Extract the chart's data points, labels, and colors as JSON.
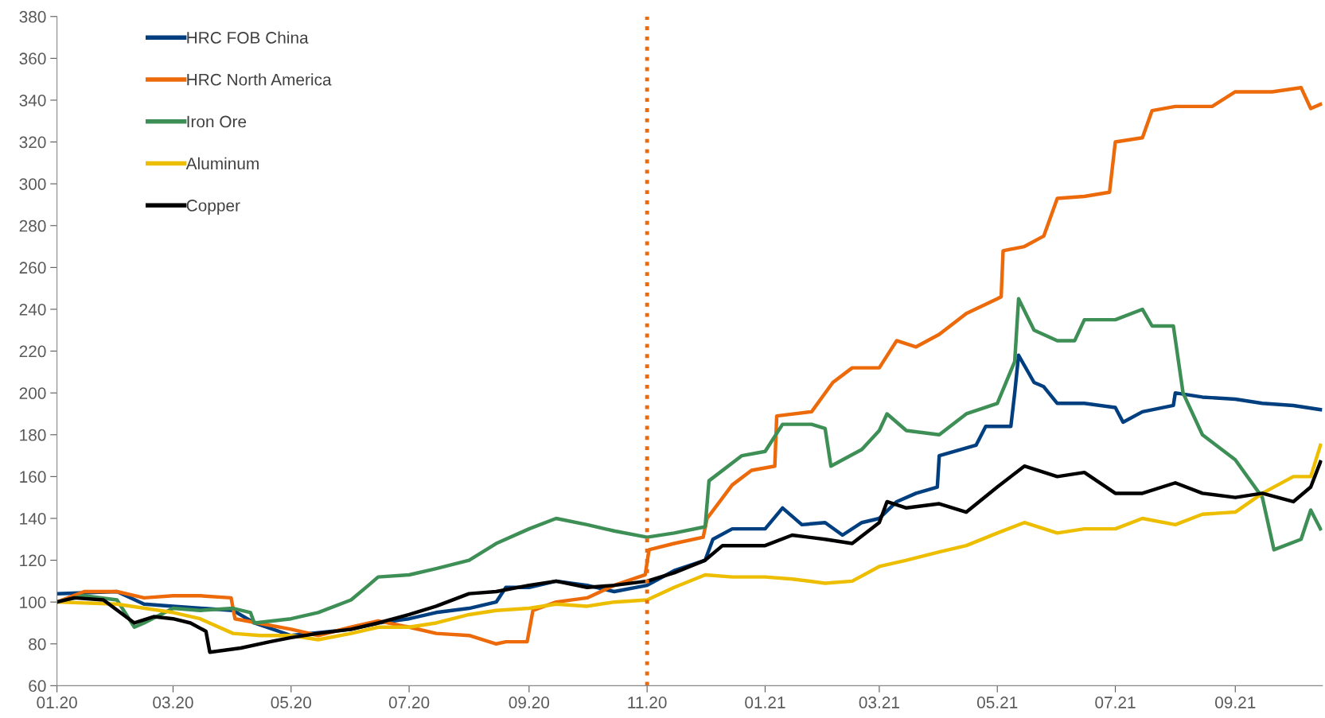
{
  "chart_data": {
    "type": "line",
    "xlim": [
      "2020-01-01",
      "2021-10-16"
    ],
    "xticks": [
      {
        "value": "2020-01-01",
        "label": "01.20"
      },
      {
        "value": "2020-03-01",
        "label": "03.20"
      },
      {
        "value": "2020-05-01",
        "label": "05.20"
      },
      {
        "value": "2020-07-01",
        "label": "07.20"
      },
      {
        "value": "2020-09-01",
        "label": "09.20"
      },
      {
        "value": "2020-11-01",
        "label": "11.20"
      },
      {
        "value": "2021-01-01",
        "label": "01.21"
      },
      {
        "value": "2021-03-01",
        "label": "03.21"
      },
      {
        "value": "2021-05-01",
        "label": "05.21"
      },
      {
        "value": "2021-07-01",
        "label": "07.21"
      },
      {
        "value": "2021-09-01",
        "label": "09.21"
      }
    ],
    "ylim": [
      60,
      380
    ],
    "yticks": [
      60,
      80,
      100,
      120,
      140,
      160,
      180,
      200,
      220,
      240,
      260,
      280,
      300,
      320,
      340,
      360,
      380
    ],
    "grid": false,
    "legend": "top left",
    "marker": "none",
    "line_style": "solid",
    "ref_lines": [
      {
        "axis": "x",
        "value": "2020-11-01",
        "label": null,
        "color": "#ed6a0b",
        "line_style": "dotted"
      }
    ],
    "series": [
      {
        "name": "HRC FOB China",
        "color": "#003f7f",
        "x": [
          "2020-01-01",
          "2020-02-01",
          "2020-02-15",
          "2020-03-01",
          "2020-04-01",
          "2020-04-12",
          "2020-05-01",
          "2020-06-01",
          "2020-06-15",
          "2020-07-01",
          "2020-07-15",
          "2020-08-01",
          "2020-08-15",
          "2020-08-20",
          "2020-09-01",
          "2020-09-15",
          "2020-10-01",
          "2020-10-15",
          "2020-11-01",
          "2020-11-15",
          "2020-12-01",
          "2020-12-05",
          "2020-12-15",
          "2021-01-01",
          "2021-01-10",
          "2021-01-20",
          "2021-02-01",
          "2021-02-10",
          "2021-02-20",
          "2021-03-01",
          "2021-03-10",
          "2021-03-20",
          "2021-03-31",
          "2021-04-01",
          "2021-04-20",
          "2021-04-25",
          "2021-05-08",
          "2021-05-10",
          "2021-05-12",
          "2021-05-20",
          "2021-05-25",
          "2021-06-01",
          "2021-06-15",
          "2021-07-01",
          "2021-07-05",
          "2021-07-15",
          "2021-07-31",
          "2021-08-01",
          "2021-08-15",
          "2021-09-01",
          "2021-09-15",
          "2021-10-01",
          "2021-10-15"
        ],
        "values": [
          104,
          105,
          99,
          98,
          96,
          90,
          84,
          87,
          90,
          92,
          95,
          97,
          100,
          107,
          107,
          110,
          108,
          105,
          108,
          115,
          120,
          130,
          135,
          135,
          145,
          137,
          138,
          132,
          138,
          140,
          148,
          152,
          155,
          170,
          175,
          184,
          184,
          200,
          218,
          205,
          203,
          195,
          195,
          193,
          186,
          191,
          194,
          200,
          198,
          197,
          195,
          194,
          192
        ]
      },
      {
        "name": "HRC North America",
        "color": "#ed6a0b",
        "x": [
          "2020-01-01",
          "2020-01-15",
          "2020-02-01",
          "2020-02-15",
          "2020-03-01",
          "2020-03-15",
          "2020-03-31",
          "2020-04-02",
          "2020-05-01",
          "2020-05-15",
          "2020-06-01",
          "2020-06-15",
          "2020-07-01",
          "2020-07-15",
          "2020-08-01",
          "2020-08-15",
          "2020-08-20",
          "2020-08-31",
          "2020-09-03",
          "2020-09-15",
          "2020-10-01",
          "2020-10-15",
          "2020-10-31",
          "2020-11-02",
          "2020-11-15",
          "2020-11-30",
          "2020-12-02",
          "2020-12-15",
          "2020-12-25",
          "2021-01-06",
          "2021-01-07",
          "2021-01-25",
          "2021-02-05",
          "2021-02-15",
          "2021-03-01",
          "2021-03-10",
          "2021-03-20",
          "2021-04-01",
          "2021-04-15",
          "2021-05-01",
          "2021-05-03",
          "2021-05-04",
          "2021-05-15",
          "2021-05-25",
          "2021-06-01",
          "2021-06-15",
          "2021-06-28",
          "2021-07-01",
          "2021-07-15",
          "2021-07-20",
          "2021-08-01",
          "2021-08-20",
          "2021-09-01",
          "2021-09-20",
          "2021-10-05",
          "2021-10-10",
          "2021-10-15"
        ],
        "values": [
          100,
          105,
          105,
          102,
          103,
          103,
          102,
          92,
          87,
          84,
          88,
          91,
          88,
          85,
          84,
          80,
          81,
          81,
          96,
          100,
          102,
          108,
          113,
          125,
          128,
          131,
          140,
          156,
          163,
          165,
          189,
          191,
          205,
          212,
          212,
          225,
          222,
          228,
          238,
          245,
          246,
          268,
          270,
          275,
          293,
          294,
          296,
          320,
          322,
          335,
          337,
          337,
          344,
          344,
          346,
          336,
          338
        ]
      },
      {
        "name": "Iron Ore",
        "color": "#3e8f56",
        "x": [
          "2020-01-01",
          "2020-01-15",
          "2020-02-01",
          "2020-02-10",
          "2020-02-15",
          "2020-03-01",
          "2020-03-15",
          "2020-04-01",
          "2020-04-10",
          "2020-04-12",
          "2020-05-01",
          "2020-05-15",
          "2020-06-01",
          "2020-06-10",
          "2020-06-15",
          "2020-07-01",
          "2020-07-15",
          "2020-08-01",
          "2020-08-15",
          "2020-09-01",
          "2020-09-15",
          "2020-10-01",
          "2020-10-15",
          "2020-11-01",
          "2020-11-15",
          "2020-12-01",
          "2020-12-03",
          "2020-12-20",
          "2021-01-01",
          "2021-01-10",
          "2021-01-25",
          "2021-02-01",
          "2021-02-04",
          "2021-02-20",
          "2021-03-01",
          "2021-03-05",
          "2021-03-15",
          "2021-04-01",
          "2021-04-15",
          "2021-05-01",
          "2021-05-10",
          "2021-05-12",
          "2021-05-20",
          "2021-06-01",
          "2021-06-10",
          "2021-06-15",
          "2021-07-01",
          "2021-07-15",
          "2021-07-20",
          "2021-07-31",
          "2021-08-05",
          "2021-08-15",
          "2021-09-01",
          "2021-09-15",
          "2021-09-21",
          "2021-10-05",
          "2021-10-10",
          "2021-10-15"
        ],
        "values": [
          100,
          103,
          101,
          88,
          90,
          97,
          96,
          97,
          95,
          90,
          92,
          95,
          101,
          108,
          112,
          113,
          116,
          120,
          128,
          135,
          140,
          137,
          134,
          131,
          133,
          136,
          158,
          170,
          172,
          185,
          185,
          183,
          165,
          173,
          182,
          190,
          182,
          180,
          190,
          195,
          215,
          245,
          230,
          225,
          225,
          235,
          235,
          240,
          232,
          232,
          200,
          180,
          168,
          150,
          125,
          130,
          144,
          135
        ]
      },
      {
        "name": "Aluminum",
        "color": "#edbe00",
        "x": [
          "2020-01-01",
          "2020-02-01",
          "2020-03-01",
          "2020-03-15",
          "2020-04-01",
          "2020-04-15",
          "2020-05-01",
          "2020-05-15",
          "2020-06-01",
          "2020-06-15",
          "2020-07-01",
          "2020-07-15",
          "2020-08-01",
          "2020-08-15",
          "2020-09-01",
          "2020-09-15",
          "2020-10-01",
          "2020-10-15",
          "2020-11-01",
          "2020-11-15",
          "2020-12-01",
          "2020-12-15",
          "2021-01-01",
          "2021-01-15",
          "2021-02-01",
          "2021-02-15",
          "2021-03-01",
          "2021-03-15",
          "2021-04-01",
          "2021-04-15",
          "2021-05-01",
          "2021-05-15",
          "2021-06-01",
          "2021-06-15",
          "2021-07-01",
          "2021-07-15",
          "2021-08-01",
          "2021-08-15",
          "2021-09-01",
          "2021-09-15",
          "2021-10-01",
          "2021-10-10",
          "2021-10-15"
        ],
        "values": [
          100,
          99,
          95,
          92,
          85,
          84,
          84,
          82,
          85,
          88,
          88,
          90,
          94,
          96,
          97,
          99,
          98,
          100,
          101,
          107,
          113,
          112,
          112,
          111,
          109,
          110,
          117,
          120,
          124,
          127,
          133,
          138,
          133,
          135,
          135,
          140,
          137,
          142,
          143,
          152,
          160,
          160,
          175
        ]
      },
      {
        "name": "Copper",
        "color": "#000000",
        "x": [
          "2020-01-01",
          "2020-01-10",
          "2020-01-25",
          "2020-02-10",
          "2020-02-20",
          "2020-03-01",
          "2020-03-10",
          "2020-03-18",
          "2020-03-20",
          "2020-04-05",
          "2020-04-20",
          "2020-05-01",
          "2020-05-15",
          "2020-06-01",
          "2020-06-15",
          "2020-07-01",
          "2020-07-15",
          "2020-08-01",
          "2020-08-15",
          "2020-09-01",
          "2020-09-15",
          "2020-10-01",
          "2020-10-15",
          "2020-11-01",
          "2020-11-15",
          "2020-12-01",
          "2020-12-10",
          "2021-01-01",
          "2021-01-15",
          "2021-02-01",
          "2021-02-15",
          "2021-03-01",
          "2021-03-05",
          "2021-03-15",
          "2021-04-01",
          "2021-04-15",
          "2021-05-01",
          "2021-05-15",
          "2021-06-01",
          "2021-06-15",
          "2021-07-01",
          "2021-07-15",
          "2021-08-01",
          "2021-08-15",
          "2021-09-01",
          "2021-09-15",
          "2021-10-01",
          "2021-10-10",
          "2021-10-15"
        ],
        "values": [
          100,
          102,
          101,
          90,
          93,
          92,
          90,
          86,
          76,
          78,
          81,
          83,
          85,
          87,
          90,
          94,
          98,
          104,
          105,
          108,
          110,
          107,
          108,
          110,
          114,
          120,
          127,
          127,
          132,
          130,
          128,
          138,
          148,
          145,
          147,
          143,
          155,
          165,
          160,
          162,
          152,
          152,
          157,
          152,
          150,
          152,
          148,
          155,
          167
        ]
      }
    ]
  }
}
